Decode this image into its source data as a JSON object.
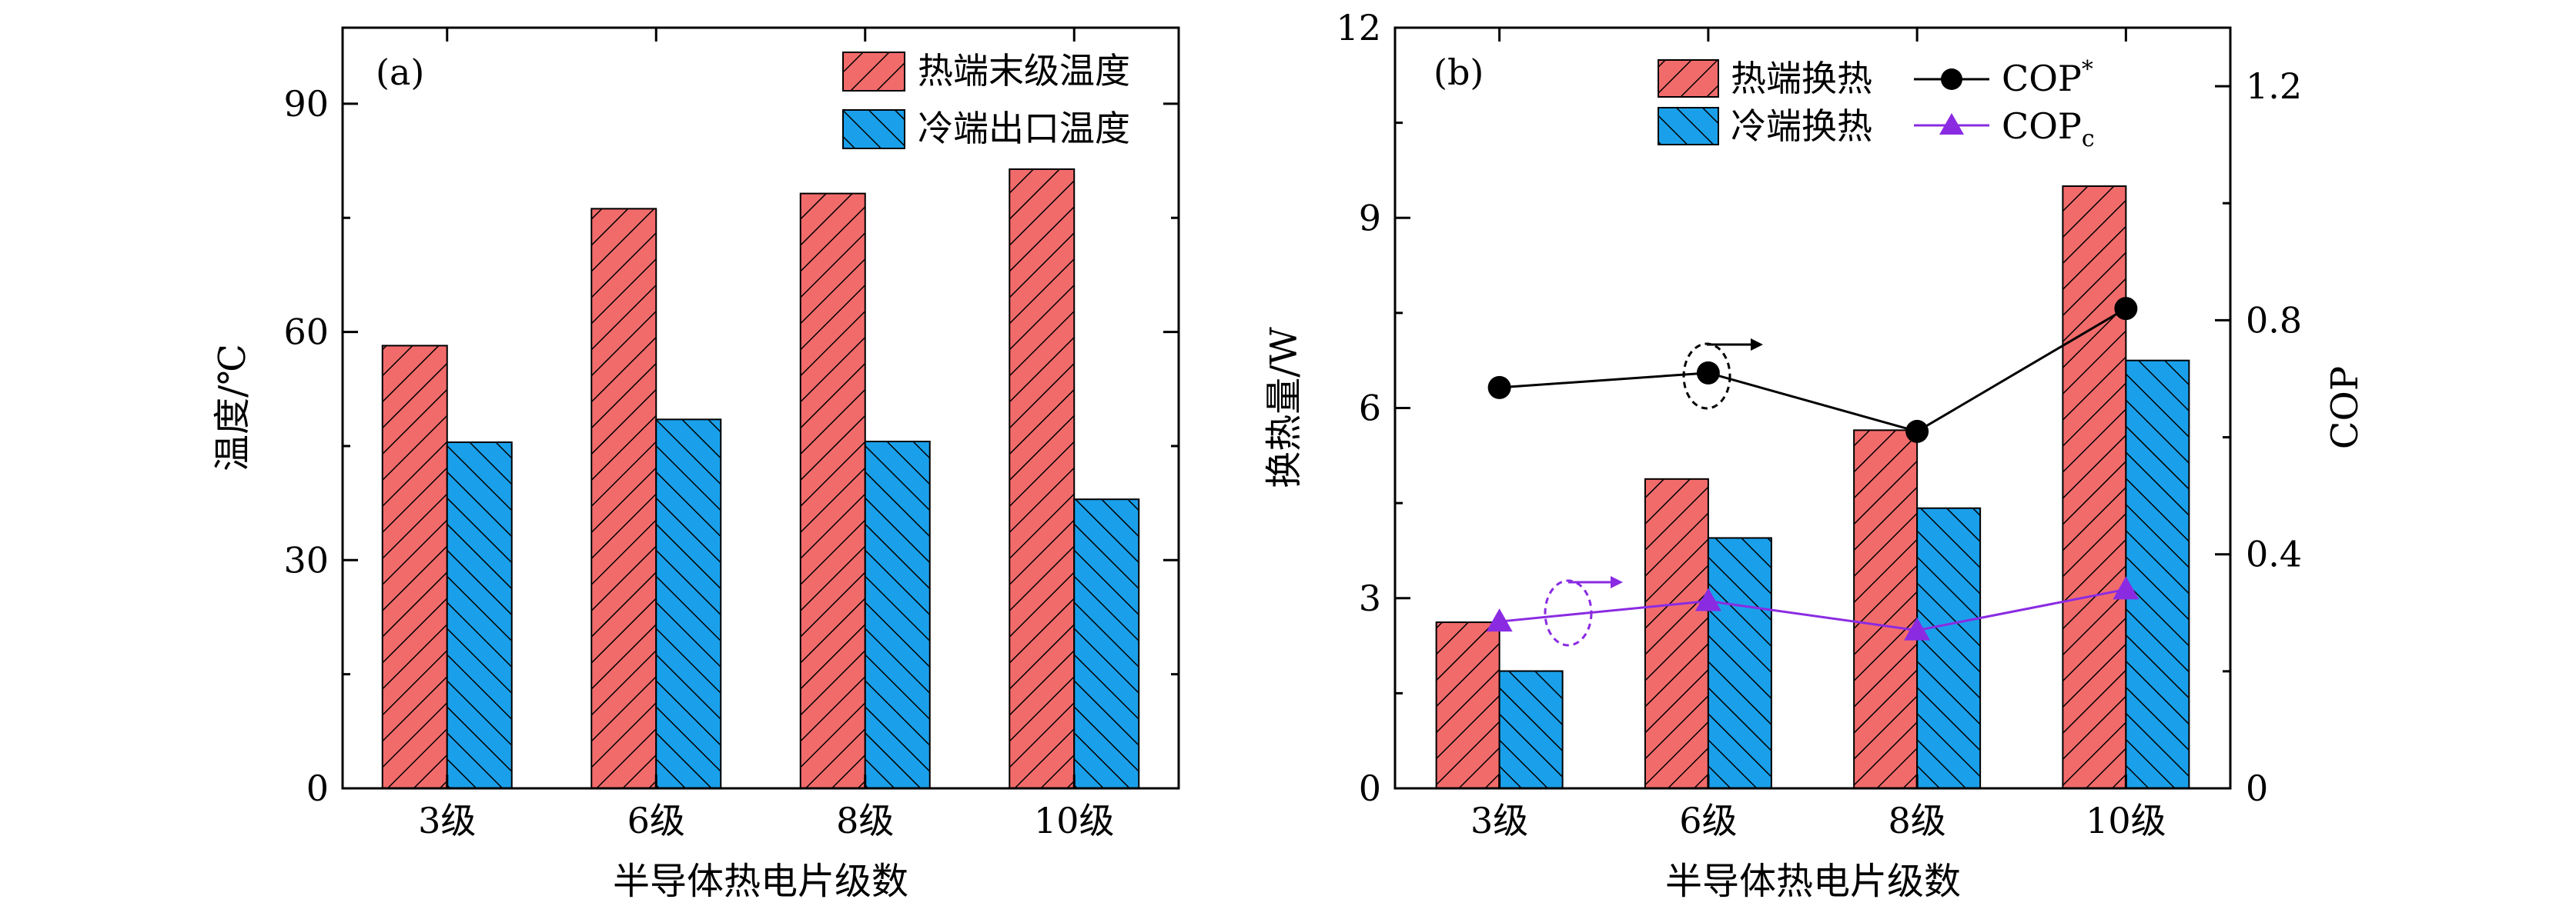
{
  "chart_data": [
    {
      "panel_label": "(a)",
      "type": "bar",
      "categories": [
        "3级",
        "6级",
        "8级",
        "10级"
      ],
      "xlabel": "半导体热电片级数",
      "ylabel": "温度/℃",
      "ylim": [
        0,
        100
      ],
      "yticks": [
        0,
        30,
        60,
        90
      ],
      "legend_position": "top-right",
      "series": [
        {
          "name": "热端末级温度",
          "values": [
            58.2,
            76.2,
            78.2,
            81.4
          ],
          "color": "#f26b6b",
          "hatch": "forward"
        },
        {
          "name": "冷端出口温度",
          "values": [
            45.5,
            48.5,
            45.6,
            38.0
          ],
          "color": "#1aa0ea",
          "hatch": "backward"
        }
      ]
    },
    {
      "panel_label": "(b)",
      "type": "bar+line",
      "categories": [
        "3级",
        "6级",
        "8级",
        "10级"
      ],
      "xlabel": "半导体热电片级数",
      "ylabel": "换热量/W",
      "ylabel_right": "COP",
      "ylim": [
        0,
        12
      ],
      "yticks": [
        0,
        3,
        6,
        9,
        12
      ],
      "ylim_right": [
        0,
        1.3
      ],
      "yticks_right": [
        "0",
        "0.4",
        "0.8",
        "1.2"
      ],
      "legend_position": "top",
      "bar_series": [
        {
          "name": "热端换热",
          "values": [
            2.62,
            4.88,
            5.65,
            9.5
          ],
          "color": "#f26b6b",
          "hatch": "forward"
        },
        {
          "name": "冷端换热",
          "values": [
            1.85,
            3.95,
            4.42,
            6.75
          ],
          "color": "#1aa0ea",
          "hatch": "backward"
        }
      ],
      "line_series": [
        {
          "name": "COP",
          "sup": "*",
          "sub": "",
          "values": [
            0.685,
            0.71,
            0.61,
            0.82
          ],
          "color": "#000000",
          "marker": "circle"
        },
        {
          "name": "COP",
          "sup": "",
          "sub": "c",
          "values": [
            0.285,
            0.32,
            0.27,
            0.34
          ],
          "color": "#8a2be2",
          "marker": "triangle"
        }
      ]
    }
  ]
}
